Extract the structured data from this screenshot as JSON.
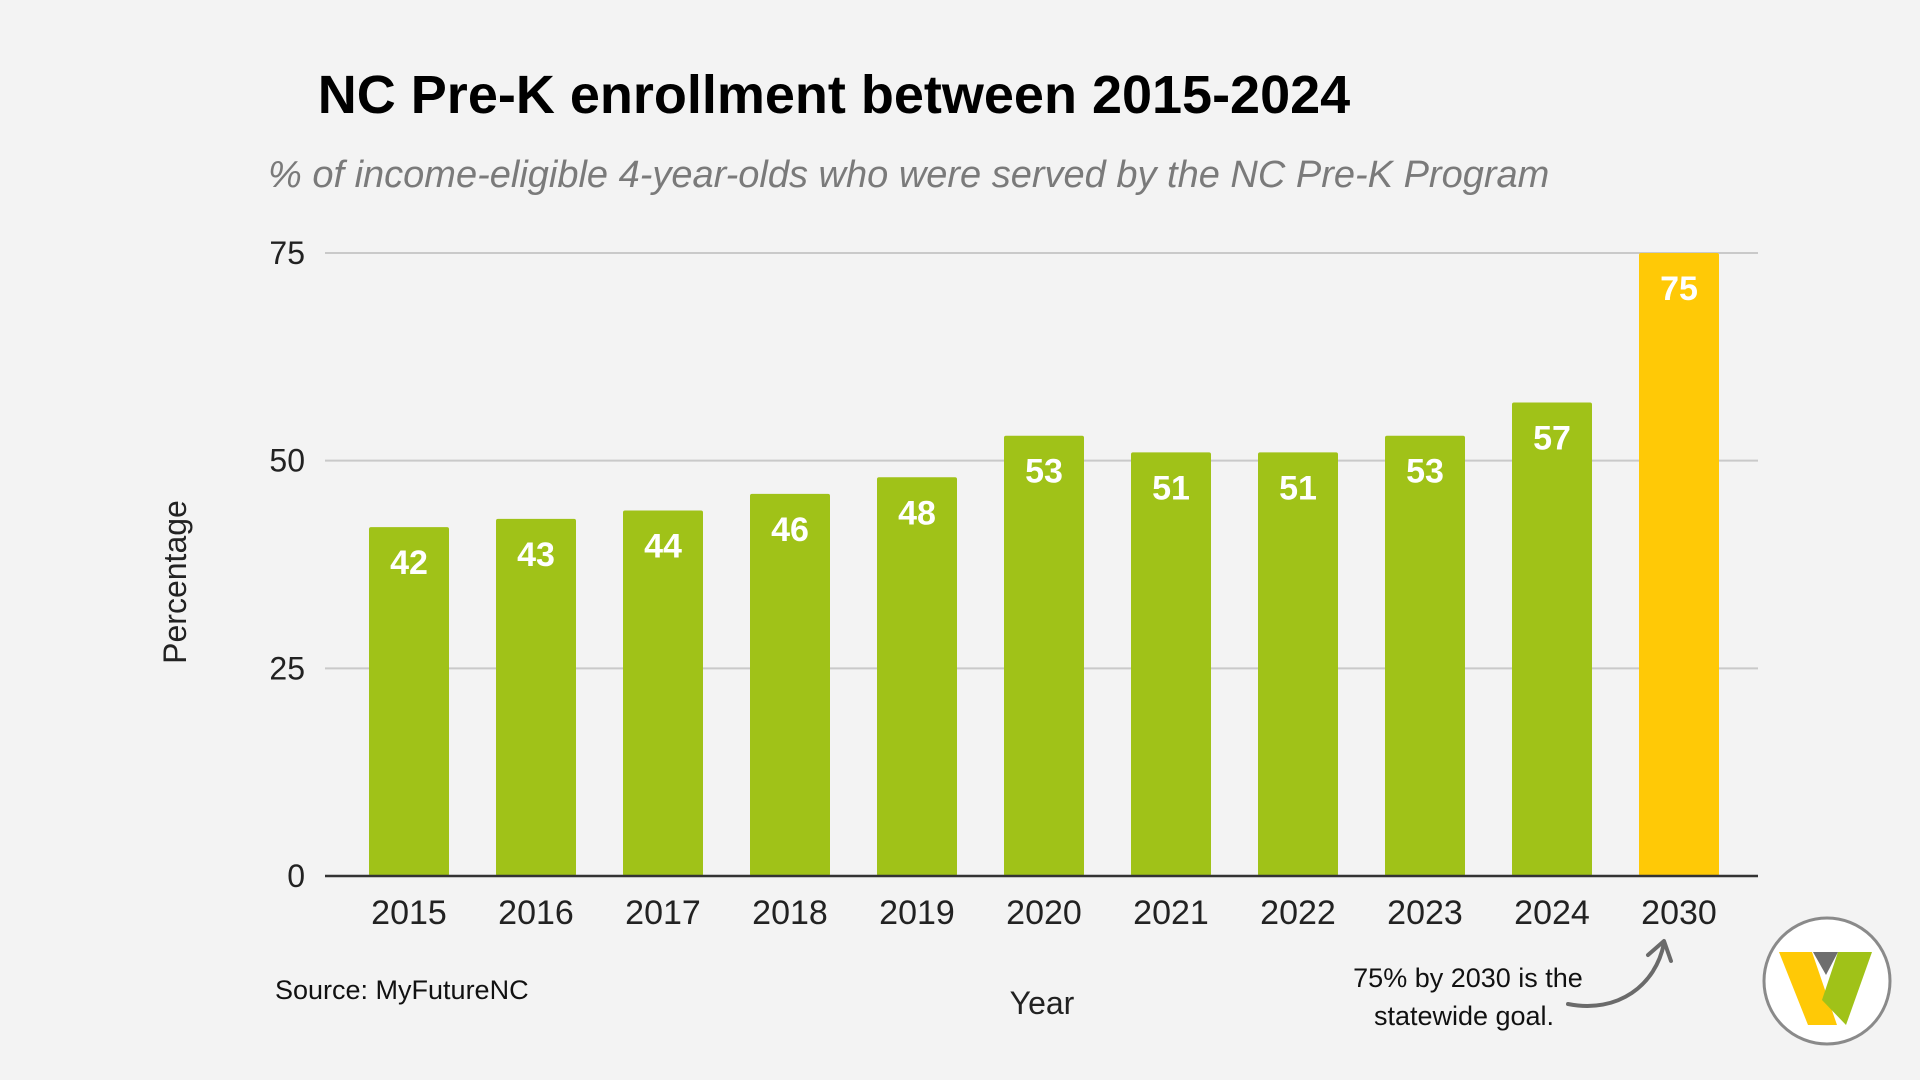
{
  "chart_data": {
    "type": "bar",
    "title": "NC Pre-K enrollment between 2015-2024",
    "subtitle": "% of income-eligible 4-year-olds who were served by the NC Pre-K Program",
    "xlabel": "Year",
    "ylabel": "Percentage",
    "categories": [
      "2015",
      "2016",
      "2017",
      "2018",
      "2019",
      "2020",
      "2021",
      "2022",
      "2023",
      "2024",
      "2030"
    ],
    "values": [
      42,
      43,
      44,
      46,
      48,
      53,
      51,
      51,
      53,
      57,
      75
    ],
    "ylim": [
      0,
      75
    ],
    "yticks": [
      0,
      25,
      50,
      75
    ],
    "grid": true,
    "colors": {
      "bar": "#a0c218",
      "goal_bar": "#ffc906",
      "grid": "#c9c9c9",
      "axis": "#333333"
    },
    "highlighted_category": "2030"
  },
  "source": "Source: MyFutureNC",
  "annotation": {
    "line1": "75% by 2030 is the",
    "line2": "statewide goal."
  },
  "logo": {
    "icon": "w-logo-icon",
    "colors": [
      "#ffc906",
      "#a0c218",
      "#6e6e6e"
    ]
  }
}
